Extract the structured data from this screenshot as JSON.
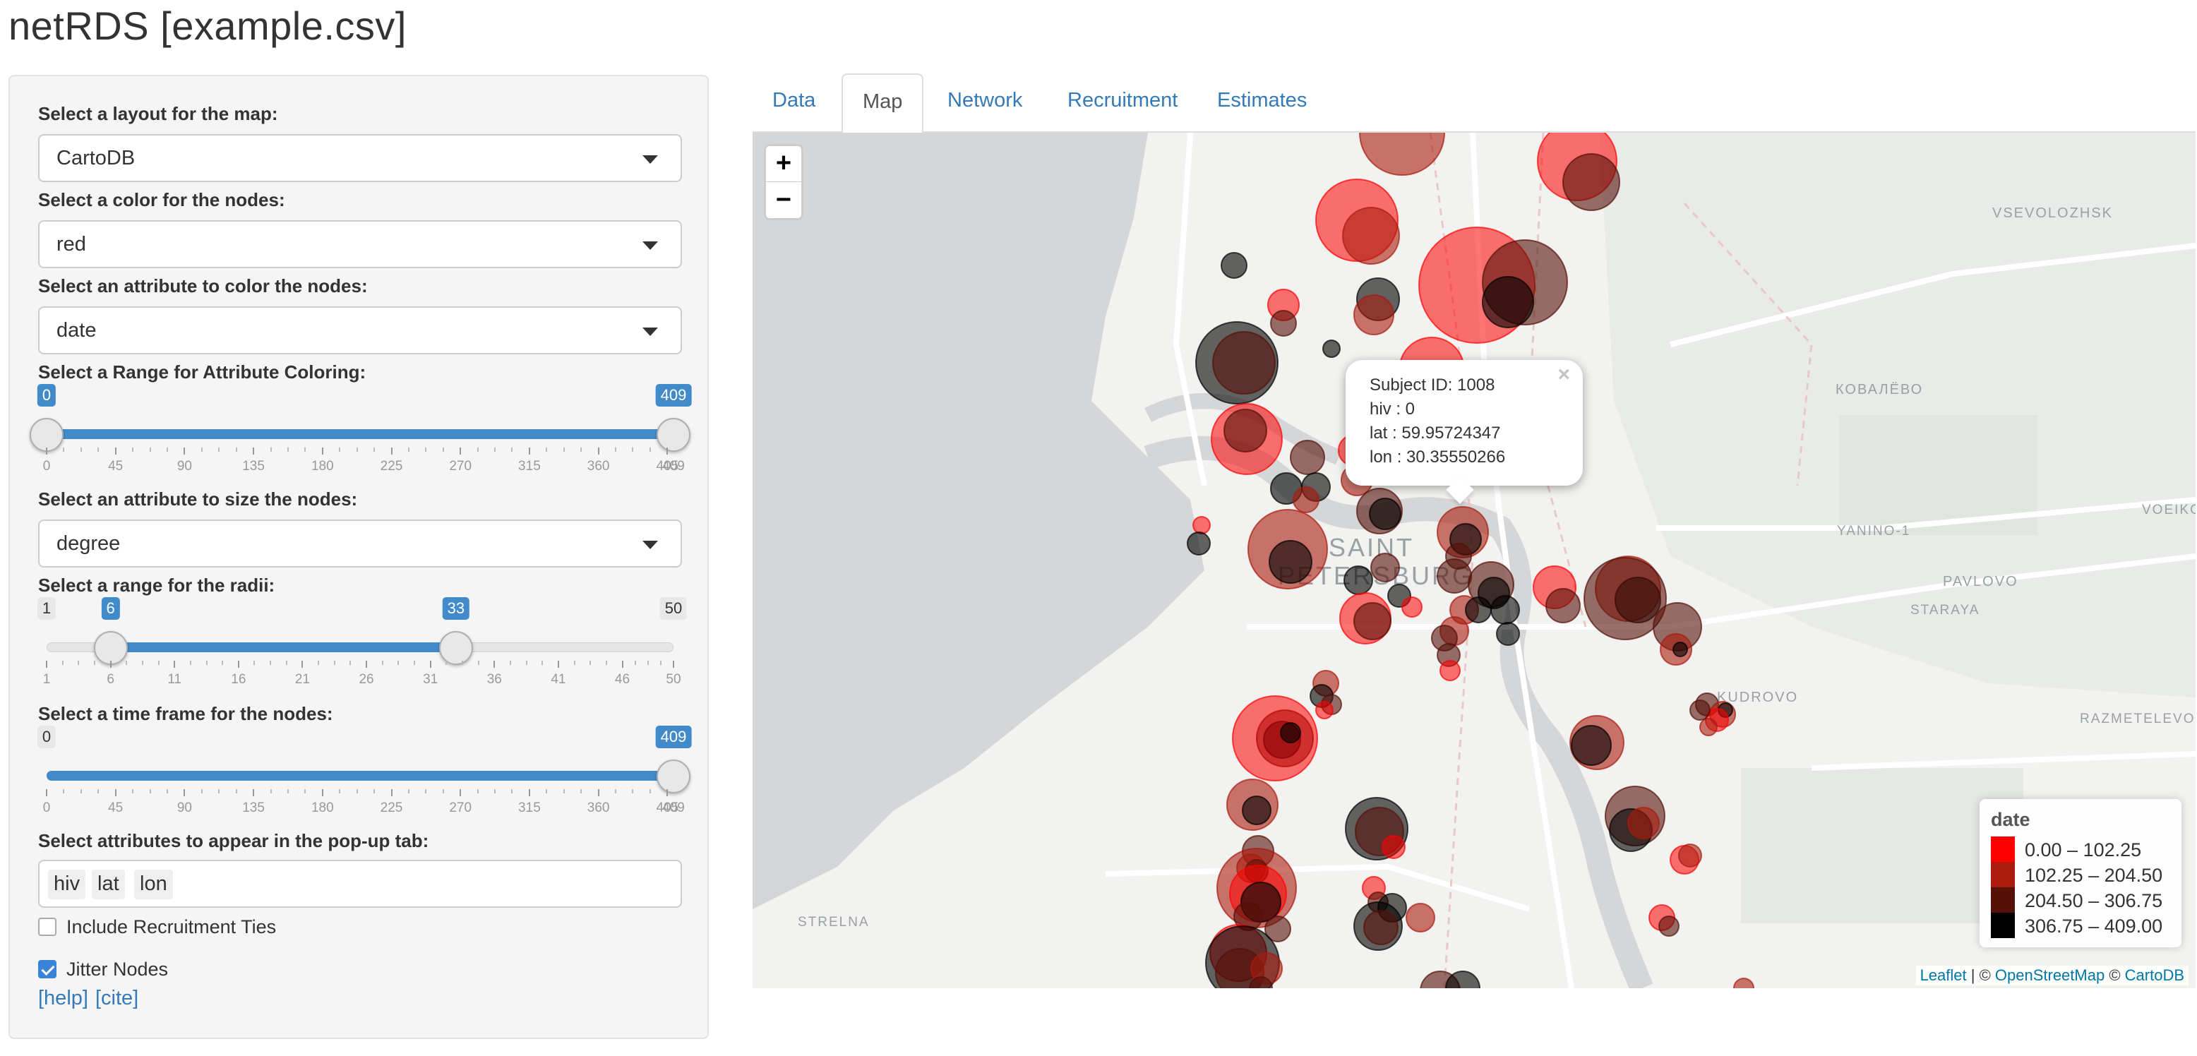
{
  "app": {
    "title": "netRDS [example.csv]"
  },
  "sidebar": {
    "layout": {
      "label": "Select a layout for the map:",
      "value": "CartoDB"
    },
    "node_color": {
      "label": "Select a color for the nodes:",
      "value": "red"
    },
    "color_attr": {
      "label": "Select an attribute to color the nodes:",
      "value": "date"
    },
    "color_range": {
      "label": "Select a Range for Attribute Coloring:",
      "min": 0,
      "max": 409,
      "from": 0,
      "to": 409,
      "from_label": "0",
      "to_label": "409",
      "ticks": [
        "0",
        "45",
        "90",
        "135",
        "180",
        "225",
        "270",
        "315",
        "360",
        "405"
      ],
      "last_tick": "409"
    },
    "size_attr": {
      "label": "Select an attribute to size the nodes:",
      "value": "degree"
    },
    "radii": {
      "label": "Select a range for the radii:",
      "min": 1,
      "max": 50,
      "from": 6,
      "to": 33,
      "min_label": "1",
      "max_label": "50",
      "from_label": "6",
      "to_label": "33",
      "ticks": [
        "1",
        "6",
        "11",
        "16",
        "21",
        "26",
        "31",
        "36",
        "41",
        "46",
        "50"
      ]
    },
    "time_frame": {
      "label": "Select a time frame for the nodes:",
      "min": 0,
      "max": 409,
      "to": 409,
      "min_label": "0",
      "to_label": "409",
      "ticks": [
        "0",
        "45",
        "90",
        "135",
        "180",
        "225",
        "270",
        "315",
        "360",
        "405"
      ],
      "last_tick": "409"
    },
    "popup_attrs": {
      "label": "Select attributes to appear in the pop-up tab:",
      "chips": [
        "hiv",
        "lat",
        "lon"
      ]
    },
    "recruitment_ties": {
      "label": "Include Recruitment Ties",
      "checked": false
    },
    "jitter": {
      "label": "Jitter Nodes",
      "checked": true
    },
    "help_link": "[help]",
    "cite_link": "[cite]"
  },
  "tabs": [
    {
      "label": "Data",
      "active": false
    },
    {
      "label": "Map",
      "active": true
    },
    {
      "label": "Network",
      "active": false
    },
    {
      "label": "Recruitment",
      "active": false
    },
    {
      "label": "Estimates",
      "active": false
    }
  ],
  "map": {
    "zoom_in": "+",
    "zoom_out": "−",
    "place_labels": [
      "SAINT",
      "PETERSBURG",
      "VSEVOLOZHSK",
      "КОВАЛЁВО",
      "YANINO-1",
      "VOEIKOV",
      "PAVLOVO",
      "STARAYA",
      "KUDROVO",
      "RAZMETELEVO",
      "STRELNA"
    ],
    "popup": {
      "close": "×",
      "lines": [
        "Subject ID: 1008",
        "hiv : 0",
        "lat : 59.95724347",
        "lon : 30.35550266"
      ]
    },
    "legend": {
      "title": "date",
      "items": [
        {
          "label": "0.00 – 102.25",
          "color": "#ff0000"
        },
        {
          "label": "102.25 – 204.50",
          "color": "#aa1a0d"
        },
        {
          "label": "204.50 – 306.75",
          "color": "#551008"
        },
        {
          "label": "306.75 – 409.00",
          "color": "#000000"
        }
      ]
    },
    "attribution": {
      "leaflet": "Leaflet",
      "sep1": " | © ",
      "osm": "OpenStreetMap",
      "sep2": " © ",
      "carto": "CartoDB"
    }
  }
}
